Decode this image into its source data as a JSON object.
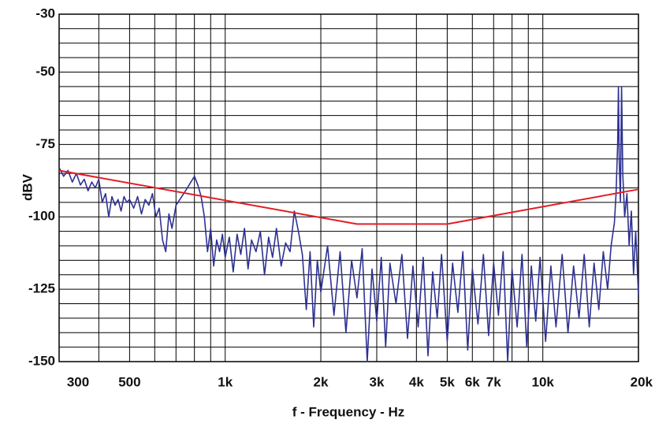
{
  "chart_data": {
    "type": "line",
    "xlabel": "f - Frequency - Hz",
    "ylabel": "dBV",
    "xscale": "log",
    "grid": true,
    "xlim": [
      300,
      20000
    ],
    "ylim": [
      -150,
      -30
    ],
    "xticks": [
      300,
      500,
      {
        "value": 1000,
        "label": "1k"
      },
      {
        "value": 2000,
        "label": "2k"
      },
      {
        "value": 3000,
        "label": "3k"
      },
      {
        "value": 4000,
        "label": "4k"
      },
      {
        "value": 5000,
        "label": "5k"
      },
      {
        "value": 6000,
        "label": "6k"
      },
      {
        "value": 7000,
        "label": "7k"
      },
      {
        "value": 10000,
        "label": "10k"
      },
      {
        "value": 20000,
        "label": "20k"
      }
    ],
    "xgrid": [
      400,
      600,
      700,
      800,
      900,
      8000,
      9000
    ],
    "yticks": [
      -30,
      -50,
      -75,
      -100,
      -125,
      -150
    ],
    "ygrid": [
      -35,
      -40,
      -45,
      -55,
      -60,
      -65,
      -70,
      -80,
      -85,
      -90,
      -95,
      -105,
      -110,
      -115,
      -120,
      -130,
      -135,
      -140,
      -145
    ],
    "series": [
      {
        "color": "#2e3192",
        "x": [
          300,
          310,
          320,
          330,
          340,
          350,
          360,
          370,
          380,
          390,
          400,
          410,
          420,
          430,
          440,
          450,
          460,
          470,
          480,
          490,
          500,
          515,
          530,
          545,
          560,
          575,
          590,
          605,
          620,
          635,
          650,
          665,
          680,
          700,
          720,
          740,
          760,
          780,
          800,
          820,
          840,
          860,
          880,
          900,
          920,
          940,
          960,
          980,
          1000,
          1030,
          1060,
          1090,
          1120,
          1150,
          1180,
          1210,
          1250,
          1290,
          1330,
          1370,
          1410,
          1450,
          1500,
          1550,
          1600,
          1650,
          1700,
          1750,
          1800,
          1850,
          1900,
          1950,
          2000,
          2100,
          2200,
          2300,
          2400,
          2500,
          2600,
          2700,
          2800,
          2900,
          3000,
          3100,
          3200,
          3300,
          3450,
          3600,
          3750,
          3900,
          4050,
          4200,
          4350,
          4500,
          4650,
          4800,
          5000,
          5200,
          5400,
          5600,
          5800,
          6000,
          6250,
          6500,
          6750,
          7000,
          7250,
          7500,
          7750,
          8000,
          8300,
          8600,
          8900,
          9200,
          9500,
          9800,
          10200,
          10600,
          11000,
          11500,
          12000,
          12500,
          13000,
          13500,
          14000,
          14500,
          15000,
          15500,
          16000,
          16400,
          16800,
          17000,
          17200,
          17300,
          17400,
          17550,
          17700,
          17850,
          18100,
          18400,
          18700,
          19000,
          19300,
          19600,
          20000
        ],
        "values": [
          -83,
          -86,
          -84,
          -88,
          -85,
          -89,
          -87,
          -91,
          -88,
          -90,
          -87,
          -95,
          -92,
          -100,
          -93,
          -96,
          -94,
          -98,
          -93,
          -95,
          -94,
          -97,
          -93,
          -99,
          -94,
          -96,
          -92,
          -100,
          -97,
          -108,
          -112,
          -99,
          -104,
          -96,
          -94,
          -92,
          -90,
          -88,
          -86,
          -89,
          -93,
          -100,
          -112,
          -104,
          -117,
          -108,
          -112,
          -106,
          -114,
          -107,
          -119,
          -106,
          -113,
          -104,
          -118,
          -108,
          -112,
          -105,
          -120,
          -107,
          -114,
          -104,
          -117,
          -109,
          -112,
          -98,
          -105,
          -113,
          -132,
          -112,
          -138,
          -115,
          -126,
          -110,
          -134,
          -112,
          -140,
          -115,
          -128,
          -111,
          -150,
          -118,
          -136,
          -114,
          -145,
          -116,
          -130,
          -113,
          -142,
          -117,
          -138,
          -114,
          -148,
          -119,
          -135,
          -113,
          -143,
          -116,
          -133,
          -112,
          -146,
          -118,
          -137,
          -113,
          -141,
          -116,
          -134,
          -112,
          -150,
          -118,
          -138,
          -113,
          -145,
          -117,
          -136,
          -114,
          -143,
          -117,
          -138,
          -113,
          -140,
          -117,
          -135,
          -113,
          -138,
          -116,
          -132,
          -112,
          -125,
          -110,
          -102,
          -92,
          -75,
          -55,
          -80,
          -95,
          -55,
          -85,
          -100,
          -92,
          -110,
          -98,
          -120,
          -105,
          -127
        ]
      },
      {
        "color": "#e31e24",
        "x": [
          300,
          2600,
          5000,
          20000
        ],
        "values": [
          -84,
          -102.5,
          -102.5,
          -90.5
        ]
      }
    ]
  }
}
